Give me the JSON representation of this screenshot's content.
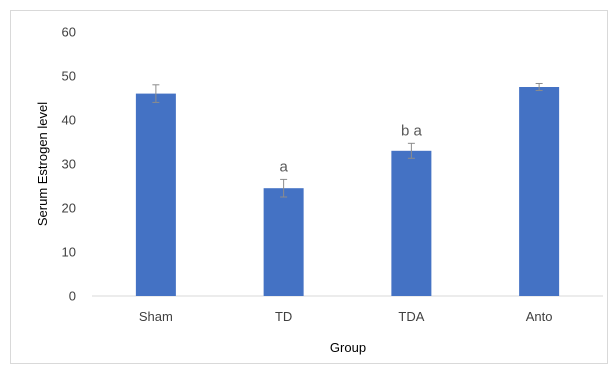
{
  "chart_data": {
    "type": "bar",
    "title": "",
    "xlabel": "Group",
    "ylabel": "Serum Estrogen level",
    "categories": [
      "Sham",
      "TD",
      "TDA",
      "Anto"
    ],
    "values": [
      46,
      24.5,
      33,
      47.5
    ],
    "errors": [
      2,
      2,
      1.7,
      0.8
    ],
    "annotations": [
      "",
      "a",
      "b a",
      ""
    ],
    "ylim": [
      0,
      60
    ],
    "yticks": [
      "0",
      "10",
      "20",
      "30",
      "40",
      "50",
      "60"
    ],
    "grid": false,
    "bar_color": "#4472C4",
    "error_color": "#8c8c8c"
  }
}
